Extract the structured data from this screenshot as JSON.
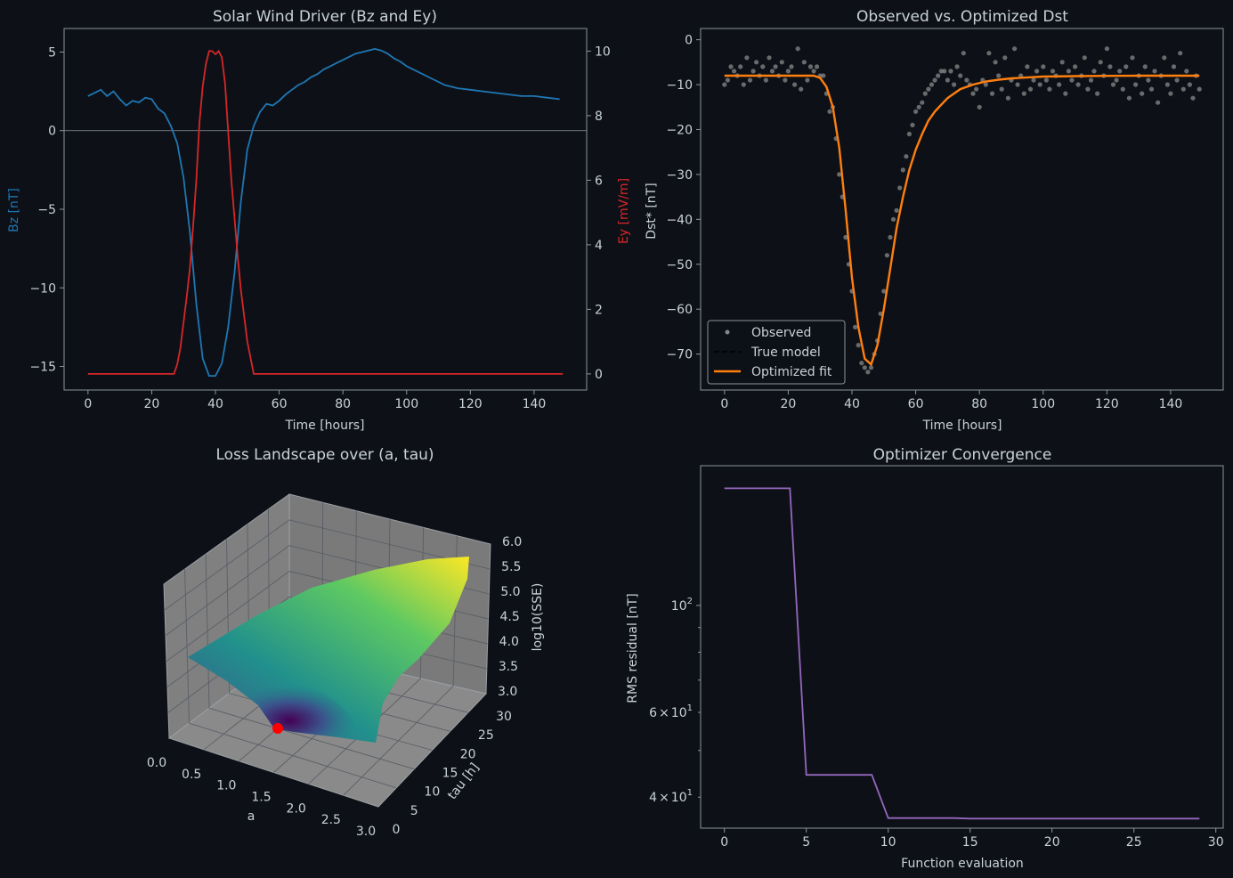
{
  "theme": {
    "bg": "#0d1117",
    "fg": "#c9d1d9",
    "spine": "#8b949e"
  },
  "chart_data": [
    {
      "type": "line",
      "title": "Solar Wind Driver (Bz and Ey)",
      "xlabel": "Time [hours]",
      "ylabel_left": "Bz [nT]",
      "ylabel_right": "Ey [mV/m]",
      "xlim": [
        -7.5,
        156.5
      ],
      "ylim_left": [
        -16.5,
        6.5
      ],
      "ylim_right": [
        -0.5,
        10.7
      ],
      "xticks": [
        0,
        20,
        40,
        60,
        80,
        100,
        120,
        140
      ],
      "yticks_left": [
        5,
        0,
        -5,
        -10,
        -15
      ],
      "yticks_left_labels": [
        "5",
        "0",
        "−5",
        "−10",
        "−15"
      ],
      "yticks_right": [
        0,
        2,
        4,
        6,
        8,
        10
      ],
      "zero_line": true,
      "grid": false,
      "series": [
        {
          "color": "#1f77b4",
          "axis": "left",
          "x": [
            0,
            2,
            4,
            6,
            8,
            10,
            12,
            14,
            16,
            18,
            20,
            22,
            24,
            26,
            28,
            30,
            32,
            34,
            36,
            38,
            40,
            42,
            44,
            46,
            48,
            50,
            52,
            54,
            56,
            58,
            60,
            62,
            64,
            66,
            68,
            70,
            72,
            74,
            76,
            78,
            80,
            82,
            84,
            86,
            88,
            90,
            92,
            94,
            96,
            98,
            100,
            104,
            108,
            112,
            116,
            120,
            124,
            128,
            132,
            136,
            140,
            144,
            148
          ],
          "values": [
            2.2,
            2.4,
            2.6,
            2.2,
            2.5,
            2.0,
            1.6,
            1.9,
            1.8,
            2.1,
            2.0,
            1.4,
            1.1,
            0.3,
            -0.8,
            -3.0,
            -6.5,
            -11.0,
            -14.5,
            -15.6,
            -15.6,
            -14.8,
            -12.5,
            -9.0,
            -4.5,
            -1.2,
            0.3,
            1.2,
            1.7,
            1.6,
            1.9,
            2.3,
            2.6,
            2.9,
            3.1,
            3.4,
            3.6,
            3.9,
            4.1,
            4.3,
            4.5,
            4.7,
            4.9,
            5.0,
            5.1,
            5.2,
            5.1,
            4.9,
            4.6,
            4.4,
            4.1,
            3.7,
            3.3,
            2.9,
            2.7,
            2.6,
            2.5,
            2.4,
            2.3,
            2.2,
            2.2,
            2.1,
            2.0
          ]
        },
        {
          "color": "#d62728",
          "axis": "right",
          "x": [
            0,
            4,
            8,
            12,
            16,
            20,
            24,
            27,
            28,
            29,
            30,
            31,
            32,
            33,
            34,
            35,
            36,
            37,
            38,
            39,
            40,
            41,
            42,
            43,
            44,
            45,
            46,
            47,
            48,
            49,
            50,
            51,
            52,
            56,
            60,
            80,
            100,
            120,
            140,
            149
          ],
          "values": [
            0,
            0,
            0,
            0,
            0,
            0,
            0,
            0,
            0.3,
            0.8,
            1.6,
            2.4,
            3.3,
            4.6,
            6.0,
            7.8,
            8.9,
            9.6,
            10.0,
            10.0,
            9.9,
            10.0,
            9.8,
            9.0,
            7.5,
            6.0,
            4.8,
            3.6,
            2.6,
            1.8,
            1.0,
            0.5,
            0,
            0,
            0,
            0,
            0,
            0,
            0,
            0
          ]
        }
      ]
    },
    {
      "type": "line",
      "title": "Observed vs. Optimized Dst",
      "xlabel": "Time [hours]",
      "ylabel": "Dst* [nT]",
      "xlim": [
        -7.5,
        156.5
      ],
      "ylim": [
        -78,
        2.5
      ],
      "xticks": [
        0,
        20,
        40,
        60,
        80,
        100,
        120,
        140
      ],
      "yticks": [
        0,
        -10,
        -20,
        -30,
        -40,
        -50,
        -60,
        -70
      ],
      "yticks_labels": [
        "0",
        "−10",
        "−20",
        "−30",
        "−40",
        "−50",
        "−60",
        "−70"
      ],
      "legend": {
        "placement": "lower-left",
        "entries": [
          "Observed",
          "True model",
          "Optimized fit"
        ]
      },
      "observed": {
        "color": "#888888",
        "x": [
          0,
          1,
          2,
          3,
          4,
          5,
          6,
          7,
          8,
          9,
          10,
          11,
          12,
          13,
          14,
          15,
          16,
          17,
          18,
          19,
          20,
          21,
          22,
          23,
          24,
          25,
          26,
          27,
          28,
          29,
          30,
          31,
          32,
          33,
          34,
          35,
          36,
          37,
          38,
          39,
          40,
          41,
          42,
          43,
          44,
          45,
          46,
          47,
          48,
          49,
          50,
          51,
          52,
          53,
          54,
          55,
          56,
          57,
          58,
          59,
          60,
          61,
          62,
          63,
          64,
          65,
          66,
          67,
          68,
          69,
          70,
          71,
          72,
          73,
          74,
          75,
          76,
          77,
          78,
          79,
          80,
          81,
          82,
          83,
          84,
          85,
          86,
          87,
          88,
          89,
          90,
          91,
          92,
          93,
          94,
          95,
          96,
          97,
          98,
          99,
          100,
          101,
          102,
          103,
          104,
          105,
          106,
          107,
          108,
          109,
          110,
          111,
          112,
          113,
          114,
          115,
          116,
          117,
          118,
          119,
          120,
          121,
          122,
          123,
          124,
          125,
          126,
          127,
          128,
          129,
          130,
          131,
          132,
          133,
          134,
          135,
          136,
          137,
          138,
          139,
          140,
          141,
          142,
          143,
          144,
          145,
          146,
          147,
          148,
          149
        ],
        "values": [
          -10,
          -9,
          -6,
          -7,
          -8,
          -6,
          -10,
          -4,
          -9,
          -7,
          -5,
          -8,
          -6,
          -9,
          -4,
          -7,
          -6,
          -8,
          -5,
          -9,
          -7,
          -6,
          -10,
          -2,
          -11,
          -5,
          -9,
          -6,
          -7,
          -6,
          -8,
          -8,
          -12,
          -16,
          -15,
          -22,
          -30,
          -35,
          -44,
          -50,
          -56,
          -64,
          -68,
          -72,
          -73,
          -74,
          -73,
          -70,
          -67,
          -61,
          -56,
          -48,
          -44,
          -40,
          -38,
          -33,
          -29,
          -26,
          -21,
          -19,
          -16,
          -15,
          -14,
          -12,
          -11,
          -10,
          -9,
          -8,
          -7,
          -7,
          -9,
          -7,
          -10,
          -6,
          -8,
          -3,
          -9,
          -10,
          -12,
          -11,
          -15,
          -9,
          -10,
          -3,
          -12,
          -5,
          -8,
          -11,
          -4,
          -13,
          -9,
          -2,
          -10,
          -8,
          -12,
          -6,
          -11,
          -9,
          -7,
          -10,
          -6,
          -9,
          -11,
          -7,
          -8,
          -10,
          -5,
          -12,
          -7,
          -9,
          -6,
          -10,
          -8,
          -4,
          -11,
          -9,
          -7,
          -12,
          -5,
          -8,
          -2,
          -6,
          -10,
          -9,
          -7,
          -11,
          -6,
          -13,
          -4,
          -10,
          -8,
          -12,
          -6,
          -9,
          -11,
          -7,
          -14,
          -8,
          -4,
          -10,
          -12,
          -6,
          -9,
          -3,
          -11,
          -7,
          -10,
          -13,
          -8,
          -11
        ],
        "label": "Observed"
      },
      "true_model": {
        "color": "#000000",
        "label": "True model",
        "x": [
          0,
          28,
          30,
          32,
          34,
          36,
          38,
          40,
          42,
          44,
          46,
          48,
          50,
          52,
          54,
          56,
          58,
          60,
          62,
          64,
          66,
          68,
          70,
          74,
          78,
          82,
          86,
          90,
          100,
          110,
          120,
          130,
          140,
          149
        ],
        "values": [
          -8,
          -8,
          -8.5,
          -10.5,
          -15,
          -24,
          -38,
          -53,
          -64,
          -71,
          -72.3,
          -68,
          -60,
          -51,
          -42,
          -35,
          -29,
          -24.5,
          -21,
          -18,
          -16,
          -14.5,
          -13,
          -11,
          -10,
          -9.3,
          -8.9,
          -8.6,
          -8.2,
          -8.1,
          -8.05,
          -8,
          -8,
          -8
        ]
      },
      "fit": {
        "color": "#ff7f0e",
        "label": "Optimized fit",
        "x": [
          0,
          28,
          30,
          32,
          34,
          36,
          38,
          40,
          42,
          44,
          46,
          48,
          50,
          52,
          54,
          56,
          58,
          60,
          62,
          64,
          66,
          68,
          70,
          74,
          78,
          82,
          86,
          90,
          100,
          110,
          120,
          130,
          140,
          149
        ],
        "values": [
          -8,
          -8,
          -8.5,
          -10.5,
          -15,
          -24,
          -38,
          -53,
          -64,
          -71,
          -72.3,
          -68,
          -60,
          -51,
          -42,
          -35,
          -29,
          -24.5,
          -21,
          -18,
          -16,
          -14.5,
          -13,
          -11,
          -10,
          -9.3,
          -8.9,
          -8.6,
          -8.2,
          -8.1,
          -8.05,
          -8,
          -8,
          -8
        ]
      }
    },
    {
      "type": "surface3d",
      "title": "Loss Landscape over (a, tau)",
      "xlabel": "a",
      "ylabel": "tau [h]",
      "zlabel": "log10(SSE)",
      "xticks": [
        "0.0",
        "0.5",
        "1.0",
        "1.5",
        "2.0",
        "2.5",
        "3.0"
      ],
      "yticks": [
        "0",
        "5",
        "10",
        "15",
        "20",
        "25",
        "30"
      ],
      "zticks": [
        "3.0",
        "3.5",
        "4.0",
        "4.5",
        "5.0",
        "5.5",
        "6.0"
      ],
      "xlim": [
        0,
        3
      ],
      "ylim": [
        0,
        30
      ],
      "zlim": [
        3,
        6
      ],
      "colormap": "viridis",
      "minimum_marker": {
        "color": "#ff0000"
      }
    },
    {
      "type": "line",
      "title": "Optimizer Convergence",
      "xlabel": "Function evaluation",
      "ylabel": "RMS residual [nT]",
      "yscale": "log",
      "xlim": [
        -1.45,
        30.45
      ],
      "ylim": [
        34.5,
        195
      ],
      "xticks": [
        0,
        5,
        10,
        15,
        20,
        25,
        30
      ],
      "yticks_major": [
        {
          "value": 100,
          "base": "10",
          "exp": "2"
        }
      ],
      "yticks_minor": [
        {
          "value": 60,
          "mant": "6",
          "base": "10",
          "exp": "1"
        },
        {
          "value": 40,
          "mant": "4",
          "base": "10",
          "exp": "1"
        }
      ],
      "series": [
        {
          "color": "#9467bd",
          "x": [
            0,
            1,
            2,
            3,
            4,
            5,
            6,
            7,
            8,
            9,
            10,
            11,
            12,
            13,
            14,
            15,
            16,
            17,
            18,
            19,
            20,
            21,
            22,
            23,
            24,
            25,
            26,
            27,
            28,
            29
          ],
          "values": [
            175,
            175,
            175,
            175,
            175,
            44.5,
            44.5,
            44.5,
            44.5,
            44.5,
            36.2,
            36.2,
            36.2,
            36.2,
            36.2,
            36.1,
            36.1,
            36.1,
            36.1,
            36.1,
            36.1,
            36.1,
            36.1,
            36.1,
            36.1,
            36.1,
            36.1,
            36.1,
            36.1,
            36.1
          ]
        }
      ]
    }
  ]
}
